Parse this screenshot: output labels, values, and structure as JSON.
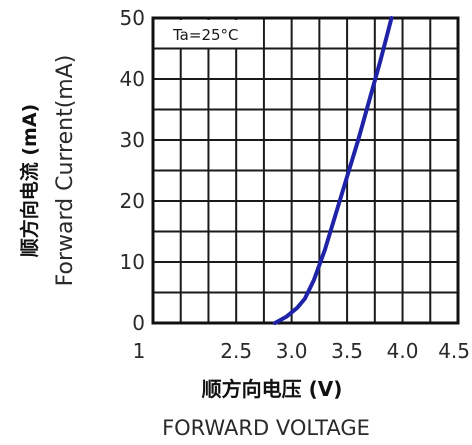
{
  "chart_data": {
    "type": "line",
    "title": "",
    "annotation": "Ta=25°C",
    "ylabel": "Forward Current(mA)",
    "ylabel_cn": "顺方向电流 (mA)",
    "xlabel": "FORWARD VOLTAGE",
    "xlabel_cn": "顺方向电压 (V)",
    "xlim": [
      1.75,
      4.5
    ],
    "ylim": [
      0,
      50
    ],
    "x_ticks": [
      {
        "value": 2.5,
        "label": "2.5"
      },
      {
        "value": 3.0,
        "label": "3.0"
      },
      {
        "value": 3.5,
        "label": "3.5"
      },
      {
        "value": 4.0,
        "label": "4.0"
      },
      {
        "value": 4.5,
        "label": "4.5"
      }
    ],
    "x_origin_label": "1",
    "y_ticks": [
      {
        "value": 0,
        "label": "0"
      },
      {
        "value": 10,
        "label": "10"
      },
      {
        "value": 20,
        "label": "20"
      },
      {
        "value": 30,
        "label": "30"
      },
      {
        "value": 40,
        "label": "40"
      },
      {
        "value": 50,
        "label": "50"
      }
    ],
    "grid": true,
    "grid_x_step": 0.25,
    "grid_y_step": 5,
    "series": [
      {
        "color": "#1f23a8",
        "x": [
          2.85,
          2.95,
          3.05,
          3.12,
          3.2,
          3.3,
          3.4,
          3.5,
          3.6,
          3.7,
          3.8,
          3.9
        ],
        "y": [
          0,
          1,
          2.5,
          4,
          7,
          12,
          18,
          24,
          30,
          36.5,
          43,
          50
        ]
      }
    ]
  }
}
